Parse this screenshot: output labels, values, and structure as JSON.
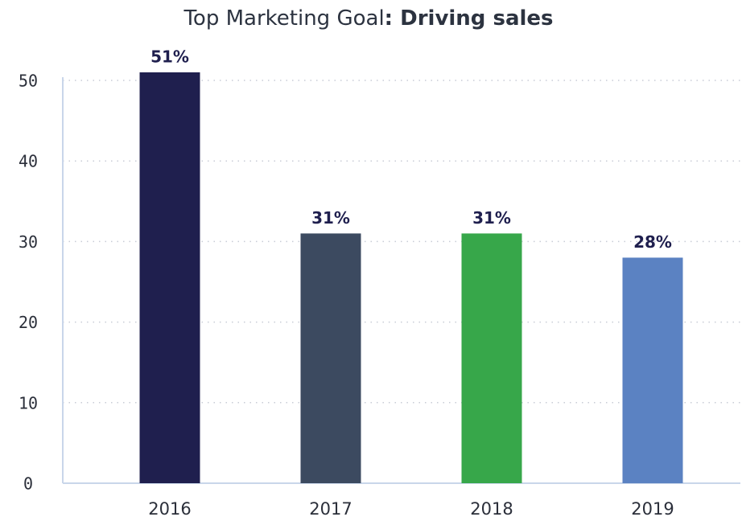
{
  "chart_data": {
    "type": "bar",
    "title": [
      "Top Marketing Goal",
      ": Driving sales"
    ],
    "categories": [
      "2016",
      "2017",
      "2018",
      "2019"
    ],
    "values": [
      51,
      31,
      31,
      28
    ],
    "value_labels": [
      "51%",
      "31%",
      "31%",
      "28%"
    ],
    "colors": [
      "#1f1f4e",
      "#3c4a60",
      "#37a74a",
      "#5b82c2"
    ],
    "ylim": [
      0,
      50
    ],
    "yticks": [
      0,
      10,
      20,
      30,
      40,
      50
    ],
    "grid": true
  }
}
